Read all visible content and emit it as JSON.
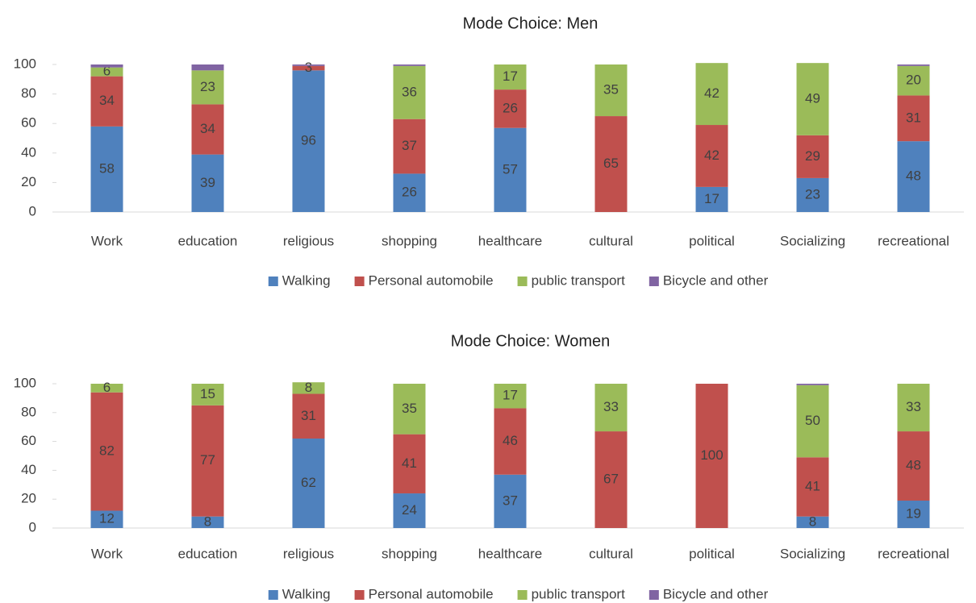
{
  "chart_data": [
    {
      "type": "bar",
      "stacked": true,
      "title": "Mode Choice: Men",
      "categories": [
        "Work",
        "education",
        "religious",
        "shopping",
        "healthcare",
        "cultural",
        "political",
        "Socializing",
        "recreational"
      ],
      "series": [
        {
          "name": "Walking",
          "color": "#4f81bd",
          "values": [
            58,
            39,
            96,
            26,
            57,
            0,
            17,
            23,
            48
          ]
        },
        {
          "name": "Personal automobile",
          "color": "#c0504d",
          "values": [
            34,
            34,
            3,
            37,
            26,
            65,
            42,
            29,
            31
          ]
        },
        {
          "name": "public transport",
          "color": "#9bbb59",
          "values": [
            6,
            23,
            0,
            36,
            17,
            35,
            42,
            49,
            20
          ]
        },
        {
          "name": "Bicycle and other",
          "color": "#8064a2",
          "values": [
            2,
            4,
            1,
            1,
            0,
            0,
            0,
            0,
            1
          ],
          "labels": false
        }
      ],
      "ylim": [
        0,
        100
      ],
      "yticks": [
        0,
        20,
        40,
        60,
        80,
        100
      ],
      "legend": "bottom"
    },
    {
      "type": "bar",
      "stacked": true,
      "title": "Mode Choice: Women",
      "categories": [
        "Work",
        "education",
        "religious",
        "shopping",
        "healthcare",
        "cultural",
        "political",
        "Socializing",
        "recreational"
      ],
      "series": [
        {
          "name": "Walking",
          "color": "#4f81bd",
          "values": [
            12,
            8,
            62,
            24,
            37,
            0,
            0,
            8,
            19
          ]
        },
        {
          "name": "Personal automobile",
          "color": "#c0504d",
          "values": [
            82,
            77,
            31,
            41,
            46,
            67,
            100,
            41,
            48
          ]
        },
        {
          "name": "public transport",
          "color": "#9bbb59",
          "values": [
            6,
            15,
            8,
            35,
            17,
            33,
            0,
            50,
            33
          ]
        },
        {
          "name": "Bicycle and other",
          "color": "#8064a2",
          "values": [
            0,
            0,
            0,
            0,
            0,
            0,
            0,
            1,
            0
          ],
          "labels": false
        }
      ],
      "ylim": [
        0,
        100
      ],
      "yticks": [
        0,
        20,
        40,
        60,
        80,
        100
      ],
      "legend": "bottom"
    }
  ]
}
